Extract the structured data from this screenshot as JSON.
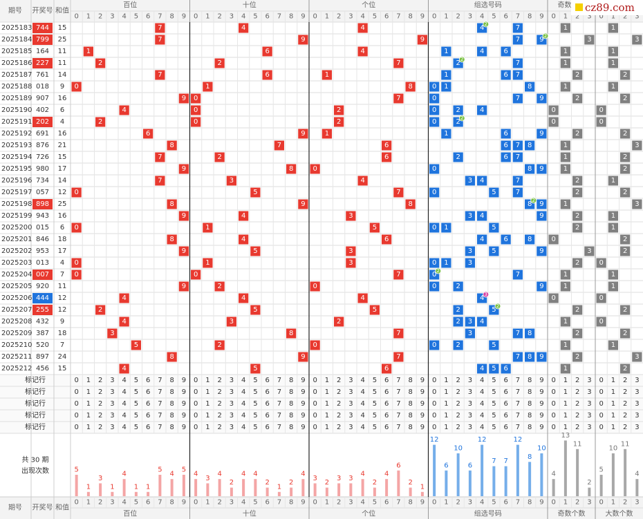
{
  "header": {
    "issue": "期号",
    "number": "开奖号",
    "sum": "和值",
    "groups": [
      "百位",
      "十位",
      "个位",
      "组选号码",
      "奇数个数",
      "大数个数"
    ]
  },
  "digits": [
    "0",
    "1",
    "2",
    "3",
    "4",
    "5",
    "6",
    "7",
    "8",
    "9"
  ],
  "draws": [
    {
      "issue": "2025183",
      "number": "744",
      "sum": 15
    },
    {
      "issue": "2025184",
      "number": "799",
      "sum": 25
    },
    {
      "issue": "2025185",
      "number": "164",
      "sum": 11
    },
    {
      "issue": "2025186",
      "number": "227",
      "sum": 11
    },
    {
      "issue": "2025187",
      "number": "761",
      "sum": 14
    },
    {
      "issue": "2025188",
      "number": "018",
      "sum": 9
    },
    {
      "issue": "2025189",
      "number": "907",
      "sum": 16
    },
    {
      "issue": "2025190",
      "number": "402",
      "sum": 6
    },
    {
      "issue": "2025191",
      "number": "202",
      "sum": 4
    },
    {
      "issue": "2025192",
      "number": "691",
      "sum": 16
    },
    {
      "issue": "2025193",
      "number": "876",
      "sum": 21
    },
    {
      "issue": "2025194",
      "number": "726",
      "sum": 15
    },
    {
      "issue": "2025195",
      "number": "980",
      "sum": 17
    },
    {
      "issue": "2025196",
      "number": "734",
      "sum": 14
    },
    {
      "issue": "2025197",
      "number": "057",
      "sum": 12
    },
    {
      "issue": "2025198",
      "number": "898",
      "sum": 25
    },
    {
      "issue": "2025199",
      "number": "943",
      "sum": 16
    },
    {
      "issue": "2025200",
      "number": "015",
      "sum": 6
    },
    {
      "issue": "2025201",
      "number": "846",
      "sum": 18
    },
    {
      "issue": "2025202",
      "number": "953",
      "sum": 17
    },
    {
      "issue": "2025203",
      "number": "013",
      "sum": 4
    },
    {
      "issue": "2025204",
      "number": "007",
      "sum": 7
    },
    {
      "issue": "2025205",
      "number": "920",
      "sum": 11
    },
    {
      "issue": "2025206",
      "number": "444",
      "sum": 12
    },
    {
      "issue": "2025207",
      "number": "255",
      "sum": 12
    },
    {
      "issue": "2025208",
      "number": "432",
      "sum": 9
    },
    {
      "issue": "2025209",
      "number": "387",
      "sum": 18
    },
    {
      "issue": "2025210",
      "number": "520",
      "sum": 7
    },
    {
      "issue": "2025211",
      "number": "897",
      "sum": 24
    },
    {
      "issue": "2025212",
      "number": "456",
      "sum": 15
    }
  ],
  "marker_rows": [
    "标记行",
    "标记行",
    "标记行",
    "标记行",
    "标记行"
  ],
  "summary": {
    "periods": "共 30 期",
    "label": "出现次数"
  },
  "counts": {
    "hundreds": [
      5,
      1,
      3,
      1,
      4,
      1,
      1,
      5,
      4,
      5
    ],
    "tens": [
      4,
      3,
      4,
      2,
      4,
      4,
      2,
      1,
      2,
      4
    ],
    "ones": [
      3,
      2,
      3,
      3,
      4,
      2,
      4,
      6,
      2,
      1
    ],
    "group": [
      12,
      6,
      10,
      6,
      12,
      7,
      7,
      12,
      8,
      10
    ],
    "odd": [
      4,
      13,
      11,
      2
    ],
    "big": [
      5,
      10,
      11,
      4
    ]
  },
  "logo": "cz89.com"
}
